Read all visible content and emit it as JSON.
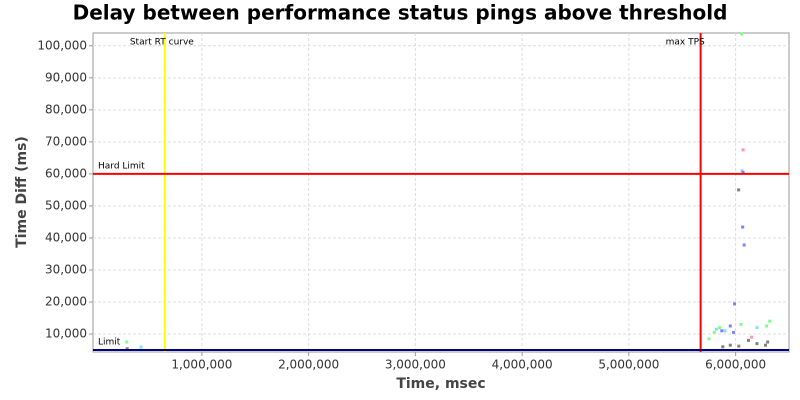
{
  "chart_data": {
    "type": "scatter",
    "title": "Delay between performance status pings above threshold",
    "x_label": "Time, msec",
    "y_label": "Time Diff (ms)",
    "xlim": [
      -20000,
      6500000
    ],
    "ylim": [
      4375,
      104000
    ],
    "xticks": [
      {
        "value": 1000000,
        "label": "1,000,000"
      },
      {
        "value": 2000000,
        "label": "2,000,000"
      },
      {
        "value": 3000000,
        "label": "3,000,000"
      },
      {
        "value": 4000000,
        "label": "4,000,000"
      },
      {
        "value": 5000000,
        "label": "5,000,000"
      },
      {
        "value": 6000000,
        "label": "6,000,000"
      }
    ],
    "yticks": [
      {
        "value": 10000,
        "label": "10,000"
      },
      {
        "value": 20000,
        "label": "20,000"
      },
      {
        "value": 30000,
        "label": "30,000"
      },
      {
        "value": 40000,
        "label": "40,000"
      },
      {
        "value": 50000,
        "label": "50,000"
      },
      {
        "value": 60000,
        "label": "60,000"
      },
      {
        "value": 70000,
        "label": "70,000"
      },
      {
        "value": 80000,
        "label": "80,000"
      },
      {
        "value": 90000,
        "label": "90,000"
      },
      {
        "value": 100000,
        "label": "100,000"
      }
    ],
    "grid": true,
    "reference_lines": [
      {
        "axis": "x",
        "value": 653000,
        "label": "Start RT curve",
        "color": "#ffff00"
      },
      {
        "axis": "x",
        "value": 5672000,
        "label": "max TPS",
        "color": "#ff0000"
      },
      {
        "axis": "y",
        "value": 60000,
        "label": "Hard Limit",
        "color": "#ff0000"
      },
      {
        "axis": "y",
        "value": 5000,
        "label": "Limit",
        "color": "#000080"
      }
    ],
    "series": [
      {
        "color": "#80ff80",
        "x": [
          296000,
          5750000,
          5800000,
          5850000,
          6050000,
          6290000,
          6320000,
          6056000
        ],
        "values": [
          7500,
          8500,
          10500,
          12000,
          13000,
          12500,
          14000,
          103750
        ]
      },
      {
        "color": "#80e0ff",
        "x": [
          430000,
          5820000,
          5900000,
          6060000,
          6200000
        ],
        "values": [
          5900,
          11500,
          11000,
          61000,
          12000
        ]
      },
      {
        "color": "#8080ff",
        "x": [
          5870000,
          5950000,
          5980000,
          6080000,
          6066000,
          6070000,
          5990000
        ],
        "values": [
          11000,
          12500,
          10500,
          37800,
          43400,
          60500,
          19400
        ]
      },
      {
        "color": "#808080",
        "x": [
          300000,
          5880000,
          5950000,
          6030000,
          6120000,
          6200000,
          6280000,
          6300000,
          6028000
        ],
        "values": [
          5400,
          6000,
          6500,
          6200,
          8000,
          7000,
          6500,
          7500,
          55000
        ]
      },
      {
        "color": "#ff90c0",
        "x": [
          6070000,
          6150000
        ],
        "values": [
          67500,
          9000
        ]
      }
    ]
  }
}
